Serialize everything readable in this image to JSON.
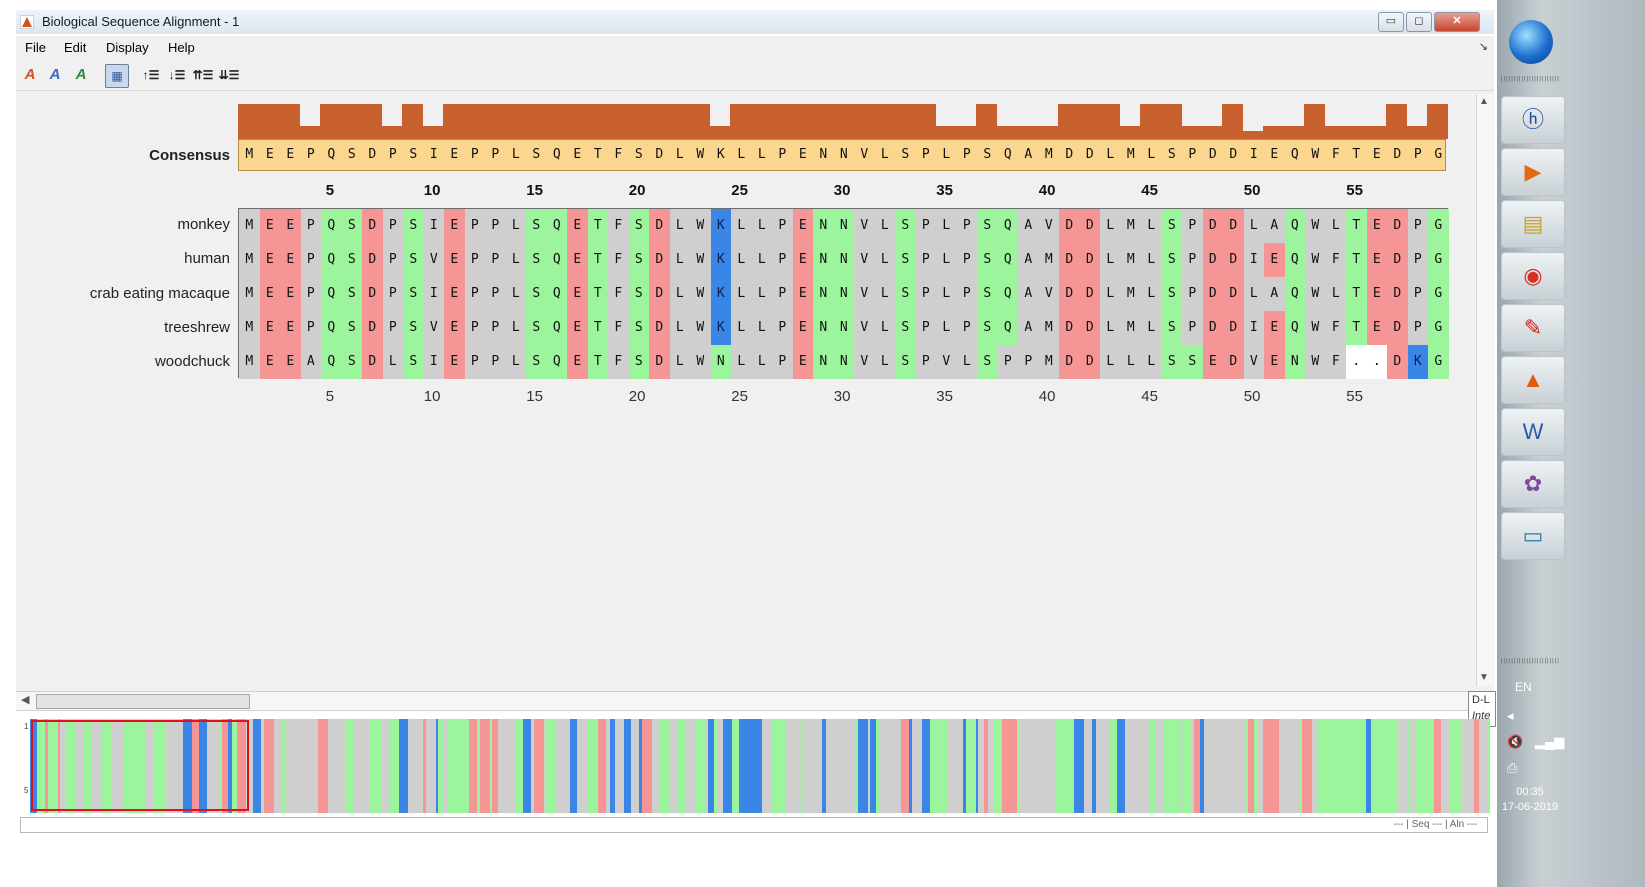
{
  "window": {
    "title": "Biological Sequence Alignment - 1",
    "controls": {
      "minimize": "▭",
      "maximize": "◻",
      "close": "✕"
    }
  },
  "menu": {
    "items": [
      "File",
      "Edit",
      "Display",
      "Help"
    ],
    "overflow_glyph": "↘"
  },
  "toolbar": {
    "icons": [
      "color-by-residue-icon",
      "italic-a-icon",
      "color-change-icon",
      "selected-view-icon",
      "indent-up-icon",
      "indent-down-icon",
      "align-top-icon",
      "align-bottom-icon"
    ]
  },
  "alignment": {
    "consensus_label": "Consensus",
    "consensus": "MEEPQSDPSIEPPLSQETFSDLWKLLPENNVLSPLPSQAMDDLMLSPDDIEQWFTEDPG",
    "conservation_levels": [
      1,
      1,
      1,
      1,
      1,
      1,
      1.0,
      0.4,
      0.4,
      0.4,
      1,
      1,
      1,
      1,
      1,
      1,
      0,
      0,
      1,
      1,
      1,
      0.8,
      0.8,
      0.8,
      1,
      1,
      1,
      1,
      1,
      1,
      1,
      1,
      1,
      1,
      1,
      1,
      1,
      1,
      1,
      1,
      1,
      1,
      1,
      1,
      1,
      1,
      0.55,
      0.55,
      1,
      1,
      1,
      1,
      1,
      1,
      1,
      1,
      1,
      1,
      1,
      1,
      1,
      1,
      1,
      1,
      1,
      1,
      1,
      1,
      1,
      1,
      1,
      1,
      1,
      1,
      1,
      1,
      1,
      1,
      1,
      1,
      1,
      1,
      1,
      1,
      1,
      1,
      1,
      1,
      1,
      1,
      1,
      1,
      1,
      1,
      1,
      1,
      1,
      1,
      1,
      1
    ],
    "tick_labels": [
      "5",
      "10",
      "15",
      "20",
      "25",
      "30",
      "35",
      "40",
      "45",
      "50",
      "55"
    ],
    "sequences": [
      {
        "name": "monkey",
        "residues": "MEEPQSDPSIEPPLSQETFSDLWKLLPENNVLSPLPSQAVDDLMLSPDDLAQWLTEDPG"
      },
      {
        "name": "human",
        "residues": "MEEPQSDPSVEPPLSQETFSDLWKLLPENNVLSPLPSQAMDDLMLSPDDIEQWFTEDPG"
      },
      {
        "name": "crab eating macaque",
        "residues": "MEEPQSDPSIEPPLSQETFSDLWKLLPENNVLSPLPSQAVDDLMLSPDDLAQWLTEDPG"
      },
      {
        "name": "treeshrew",
        "residues": "MEEPQSDPSVEPPLSQETFSDLWKLLPENNVLSPLPSQAMDDLMLSPDDIEQWFTEDPG"
      },
      {
        "name": "woodchuck",
        "residues": "MEEAQSDLSIEPPLSQETFSDLWNLLPENNVLSPVLSPPMDDLLLSSEDVENWF..DKG"
      }
    ],
    "residue_colors": {
      "acidic": "#f59595",
      "polar": "#9cf59c",
      "hydrophobic": "#cfcfcf",
      "basic": "#3a86e6",
      "gap": "#ffffff",
      "consensus_bg": "#fbd68f",
      "conservation_bar": "#c8612f"
    }
  },
  "overview": {
    "row_ticks": [
      "1",
      "5"
    ],
    "frame_color": "#e0121b"
  },
  "scroll_tooltip": {
    "line1": "D-L",
    "line2": "Inte"
  },
  "status": {
    "text": "--- | Seq --- | Aln ---"
  },
  "taskbar": {
    "icons": [
      "hp-icon",
      "media-player-icon",
      "file-manager-icon",
      "chrome-icon",
      "acrobat-icon",
      "matlab-icon",
      "word-icon",
      "paint-icon",
      "screen-icon"
    ],
    "language": "EN",
    "time": "00:35",
    "date": "17-06-2019"
  }
}
